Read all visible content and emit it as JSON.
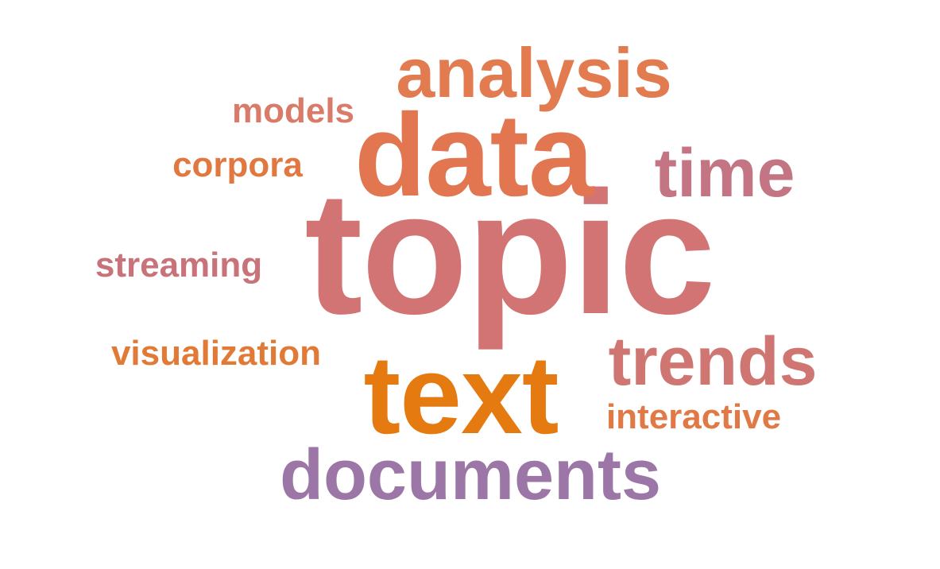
{
  "words": [
    {
      "key": "topic",
      "text": "topic",
      "color": "#d27474"
    },
    {
      "key": "data",
      "text": "data",
      "color": "#e27651"
    },
    {
      "key": "text",
      "text": "text",
      "color": "#e57a10"
    },
    {
      "key": "analysis",
      "text": "analysis",
      "color": "#e27b4f"
    },
    {
      "key": "documents",
      "text": "documents",
      "color": "#9b76a6"
    },
    {
      "key": "time",
      "text": "time",
      "color": "#c47584"
    },
    {
      "key": "trends",
      "text": "trends",
      "color": "#cf7673"
    },
    {
      "key": "models",
      "text": "models",
      "color": "#d97b68"
    },
    {
      "key": "corpora",
      "text": "corpora",
      "color": "#e0783f"
    },
    {
      "key": "streaming",
      "text": "streaming",
      "color": "#c77379"
    },
    {
      "key": "visualization",
      "text": "visualization",
      "color": "#e07a36"
    },
    {
      "key": "interactive",
      "text": "interactive",
      "color": "#e07945"
    }
  ]
}
